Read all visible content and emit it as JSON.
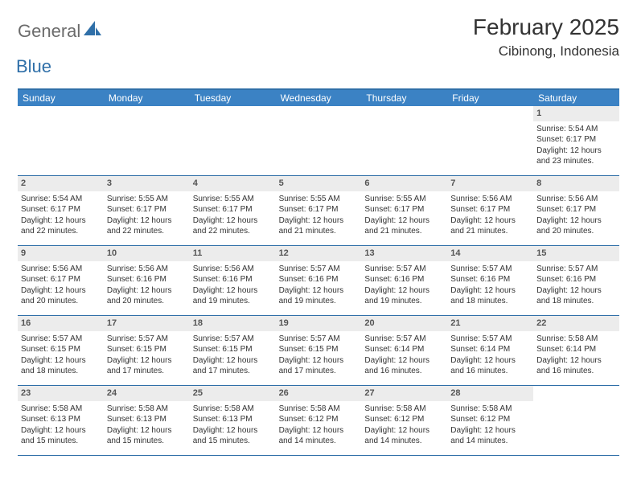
{
  "brand": {
    "general": "General",
    "blue": "Blue"
  },
  "header": {
    "month_title": "February 2025",
    "location": "Cibinong, Indonesia"
  },
  "colors": {
    "header_bar": "#3b82c4",
    "border": "#2f6fa8",
    "daynum_bg": "#ececec",
    "text": "#333333",
    "logo_gray": "#6b6b6b",
    "logo_blue": "#2f6fa8"
  },
  "weekdays": [
    "Sunday",
    "Monday",
    "Tuesday",
    "Wednesday",
    "Thursday",
    "Friday",
    "Saturday"
  ],
  "weeks": [
    [
      {
        "empty": true
      },
      {
        "empty": true
      },
      {
        "empty": true
      },
      {
        "empty": true
      },
      {
        "empty": true
      },
      {
        "empty": true
      },
      {
        "day": "1",
        "sunrise": "Sunrise: 5:54 AM",
        "sunset": "Sunset: 6:17 PM",
        "daylight": "Daylight: 12 hours and 23 minutes."
      }
    ],
    [
      {
        "day": "2",
        "sunrise": "Sunrise: 5:54 AM",
        "sunset": "Sunset: 6:17 PM",
        "daylight": "Daylight: 12 hours and 22 minutes."
      },
      {
        "day": "3",
        "sunrise": "Sunrise: 5:55 AM",
        "sunset": "Sunset: 6:17 PM",
        "daylight": "Daylight: 12 hours and 22 minutes."
      },
      {
        "day": "4",
        "sunrise": "Sunrise: 5:55 AM",
        "sunset": "Sunset: 6:17 PM",
        "daylight": "Daylight: 12 hours and 22 minutes."
      },
      {
        "day": "5",
        "sunrise": "Sunrise: 5:55 AM",
        "sunset": "Sunset: 6:17 PM",
        "daylight": "Daylight: 12 hours and 21 minutes."
      },
      {
        "day": "6",
        "sunrise": "Sunrise: 5:55 AM",
        "sunset": "Sunset: 6:17 PM",
        "daylight": "Daylight: 12 hours and 21 minutes."
      },
      {
        "day": "7",
        "sunrise": "Sunrise: 5:56 AM",
        "sunset": "Sunset: 6:17 PM",
        "daylight": "Daylight: 12 hours and 21 minutes."
      },
      {
        "day": "8",
        "sunrise": "Sunrise: 5:56 AM",
        "sunset": "Sunset: 6:17 PM",
        "daylight": "Daylight: 12 hours and 20 minutes."
      }
    ],
    [
      {
        "day": "9",
        "sunrise": "Sunrise: 5:56 AM",
        "sunset": "Sunset: 6:17 PM",
        "daylight": "Daylight: 12 hours and 20 minutes."
      },
      {
        "day": "10",
        "sunrise": "Sunrise: 5:56 AM",
        "sunset": "Sunset: 6:16 PM",
        "daylight": "Daylight: 12 hours and 20 minutes."
      },
      {
        "day": "11",
        "sunrise": "Sunrise: 5:56 AM",
        "sunset": "Sunset: 6:16 PM",
        "daylight": "Daylight: 12 hours and 19 minutes."
      },
      {
        "day": "12",
        "sunrise": "Sunrise: 5:57 AM",
        "sunset": "Sunset: 6:16 PM",
        "daylight": "Daylight: 12 hours and 19 minutes."
      },
      {
        "day": "13",
        "sunrise": "Sunrise: 5:57 AM",
        "sunset": "Sunset: 6:16 PM",
        "daylight": "Daylight: 12 hours and 19 minutes."
      },
      {
        "day": "14",
        "sunrise": "Sunrise: 5:57 AM",
        "sunset": "Sunset: 6:16 PM",
        "daylight": "Daylight: 12 hours and 18 minutes."
      },
      {
        "day": "15",
        "sunrise": "Sunrise: 5:57 AM",
        "sunset": "Sunset: 6:16 PM",
        "daylight": "Daylight: 12 hours and 18 minutes."
      }
    ],
    [
      {
        "day": "16",
        "sunrise": "Sunrise: 5:57 AM",
        "sunset": "Sunset: 6:15 PM",
        "daylight": "Daylight: 12 hours and 18 minutes."
      },
      {
        "day": "17",
        "sunrise": "Sunrise: 5:57 AM",
        "sunset": "Sunset: 6:15 PM",
        "daylight": "Daylight: 12 hours and 17 minutes."
      },
      {
        "day": "18",
        "sunrise": "Sunrise: 5:57 AM",
        "sunset": "Sunset: 6:15 PM",
        "daylight": "Daylight: 12 hours and 17 minutes."
      },
      {
        "day": "19",
        "sunrise": "Sunrise: 5:57 AM",
        "sunset": "Sunset: 6:15 PM",
        "daylight": "Daylight: 12 hours and 17 minutes."
      },
      {
        "day": "20",
        "sunrise": "Sunrise: 5:57 AM",
        "sunset": "Sunset: 6:14 PM",
        "daylight": "Daylight: 12 hours and 16 minutes."
      },
      {
        "day": "21",
        "sunrise": "Sunrise: 5:57 AM",
        "sunset": "Sunset: 6:14 PM",
        "daylight": "Daylight: 12 hours and 16 minutes."
      },
      {
        "day": "22",
        "sunrise": "Sunrise: 5:58 AM",
        "sunset": "Sunset: 6:14 PM",
        "daylight": "Daylight: 12 hours and 16 minutes."
      }
    ],
    [
      {
        "day": "23",
        "sunrise": "Sunrise: 5:58 AM",
        "sunset": "Sunset: 6:13 PM",
        "daylight": "Daylight: 12 hours and 15 minutes."
      },
      {
        "day": "24",
        "sunrise": "Sunrise: 5:58 AM",
        "sunset": "Sunset: 6:13 PM",
        "daylight": "Daylight: 12 hours and 15 minutes."
      },
      {
        "day": "25",
        "sunrise": "Sunrise: 5:58 AM",
        "sunset": "Sunset: 6:13 PM",
        "daylight": "Daylight: 12 hours and 15 minutes."
      },
      {
        "day": "26",
        "sunrise": "Sunrise: 5:58 AM",
        "sunset": "Sunset: 6:12 PM",
        "daylight": "Daylight: 12 hours and 14 minutes."
      },
      {
        "day": "27",
        "sunrise": "Sunrise: 5:58 AM",
        "sunset": "Sunset: 6:12 PM",
        "daylight": "Daylight: 12 hours and 14 minutes."
      },
      {
        "day": "28",
        "sunrise": "Sunrise: 5:58 AM",
        "sunset": "Sunset: 6:12 PM",
        "daylight": "Daylight: 12 hours and 14 minutes."
      },
      {
        "empty": true
      }
    ]
  ]
}
